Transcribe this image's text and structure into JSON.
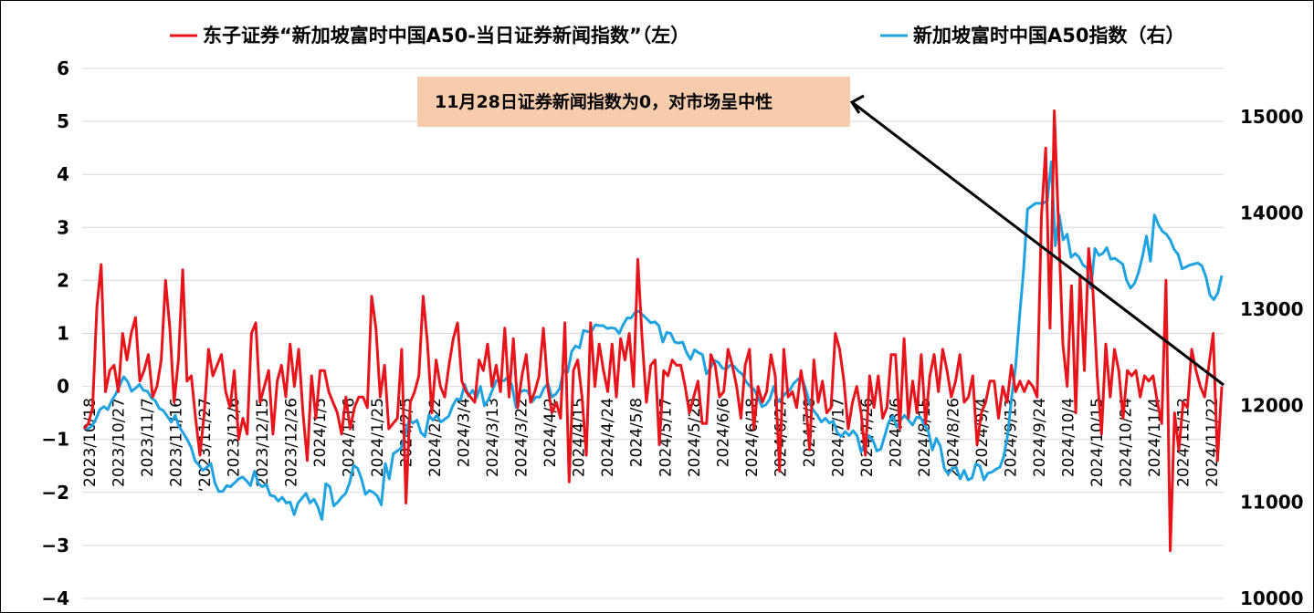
{
  "chart_data": {
    "type": "line",
    "legend_position": "top",
    "grid": true,
    "series": [
      {
        "name": "东子证券“新加坡富时中国A50-当日证券新闻指数”（左）",
        "color": "#e8141b",
        "axis": "left"
      },
      {
        "name": "新加坡富时中国A50指数（右）",
        "color": "#1fa3e0",
        "axis": "right"
      }
    ],
    "left_axis": {
      "min": -4,
      "max": 6,
      "ticks": [
        "6",
        "5",
        "4",
        "3",
        "2",
        "1",
        "0",
        "−1",
        "−2",
        "−3",
        "−4"
      ]
    },
    "right_axis": {
      "min": 10000,
      "max": 15500,
      "ticks": [
        "15000",
        "14000",
        "13000",
        "12000",
        "11000",
        "10000"
      ]
    },
    "x_ticks": [
      "2023/10/18",
      "2023/10/27",
      "2023/11/7",
      "2023/11/16",
      "‘2023/11/27",
      "2023/12/6",
      "2023/12/15",
      "2023/12/26",
      "2024/1/5",
      "2024/1/16",
      "2024/1/25",
      "2024/2/5",
      "2024/2/22",
      "2024/3/4",
      "2024/3/13",
      "2024/3/22",
      "2024/4/2",
      "2024/4/15",
      "2024/4/24",
      "2024/5/8",
      "2024/5/17",
      "2024/5/28",
      "2024/6/6",
      "2024/6/18",
      "2024/6/27",
      "2024/7/8",
      "2024/7/17",
      "2024/7/26",
      "2024/8/6",
      "2024/8/15",
      "2024/8/26",
      "2024/9/4",
      "2024/9/13",
      "2024/9/24",
      "2024/10/4",
      "2024/10/15",
      "2024/10/24",
      "2024/11/4",
      "2024/11/13",
      "2024/11/22"
    ],
    "news_index": [
      -0.8,
      -0.7,
      -0.4,
      1.5,
      2.3,
      -0.1,
      0.3,
      0.4,
      -0.1,
      1.0,
      0.5,
      1.0,
      1.3,
      0.1,
      0.3,
      0.6,
      -0.2,
      0.0,
      0.5,
      2.0,
      1.1,
      -0.3,
      0.5,
      2.2,
      0.1,
      0.2,
      -0.6,
      -1.3,
      -0.5,
      0.7,
      0.2,
      0.4,
      0.6,
      -0.1,
      -0.4,
      0.3,
      -1.0,
      -0.6,
      -0.9,
      1.0,
      1.2,
      -0.3,
      0.0,
      0.3,
      -0.9,
      0.1,
      0.4,
      -0.2,
      0.8,
      0.0,
      0.7,
      -0.5,
      -1.4,
      0.2,
      -0.6,
      0.3,
      0.3,
      -0.1,
      -0.3,
      -0.5,
      -0.9,
      -0.2,
      -0.8,
      -0.4,
      -0.2,
      -0.2,
      -0.4,
      1.7,
      1.1,
      -0.2,
      0.4,
      -0.8,
      -0.7,
      -0.6,
      0.7,
      -2.2,
      -0.3,
      -0.1,
      0.2,
      1.7,
      0.8,
      -0.5,
      0.5,
      0.0,
      -0.2,
      0.4,
      0.9,
      1.2,
      0.1,
      -0.1,
      -0.2,
      -0.3,
      0.5,
      0.3,
      0.8,
      0.0,
      0.4,
      -0.1,
      1.1,
      -0.2,
      0.9,
      -0.4,
      0.2,
      0.6,
      -0.3,
      -0.1,
      0.2,
      1.1,
      0.0,
      -0.5,
      -0.3,
      -0.6,
      1.2,
      -1.8,
      0.3,
      0.5,
      -0.2,
      -1.3,
      1.2,
      0.0,
      0.8,
      0.3,
      -0.1,
      0.8,
      -0.2,
      0.9,
      0.5,
      1.0,
      0.0,
      2.4,
      0.9,
      -0.3,
      0.4,
      0.5,
      -1.1,
      0.3,
      0.2,
      0.5,
      0.4,
      0.4,
      0.0,
      -0.5,
      -0.2,
      0.1,
      -0.7,
      -0.7,
      0.6,
      0.4,
      -0.2,
      -0.1,
      0.7,
      0.4,
      0.0,
      -0.6,
      0.4,
      0.7,
      -0.8,
      0.0,
      -0.3,
      -0.1,
      0.6,
      0.2,
      -1.6,
      0.7,
      -0.2,
      -0.1,
      -0.4,
      0.3,
      -0.2,
      -1.2,
      0.5,
      -0.3,
      0.1,
      -0.5,
      -0.4,
      1.0,
      0.7,
      0.1,
      -0.8,
      -0.3,
      0.0,
      -0.5,
      -1.3,
      0.2,
      -0.4,
      0.2,
      -0.6,
      -0.4,
      0.6,
      0.6,
      -0.8,
      0.9,
      -0.6,
      0.1,
      -0.5,
      0.6,
      -0.7,
      0.2,
      0.6,
      -0.1,
      0.7,
      0.3,
      -0.2,
      0.1,
      0.6,
      -0.3,
      -0.2,
      0.2,
      -1.1,
      -0.5,
      -0.3,
      0.1,
      0.1,
      -0.6,
      0.0,
      -0.3,
      0.4,
      -0.1,
      0.1,
      -0.1,
      0.1,
      0.0,
      -0.2,
      3.2,
      4.5,
      1.1,
      5.2,
      3.0,
      0.8,
      0.0,
      1.9,
      -0.5,
      2.1,
      0.3,
      2.6,
      1.8,
      0.2,
      -0.9,
      0.8,
      -0.2,
      0.7,
      0.3,
      -0.6,
      0.3,
      0.2,
      0.3,
      -0.2,
      0.2,
      0.1,
      0.2,
      -0.3,
      -0.7,
      2.0,
      -3.1,
      -0.5,
      -1.2,
      -0.3,
      -0.4,
      0.7,
      0.3,
      0.0,
      -0.2,
      0.4,
      1.0,
      -1.4,
      0.0
    ],
    "a50_index": [
      11770,
      11760,
      11790,
      11860,
      11960,
      11990,
      11960,
      12050,
      12120,
      12210,
      12300,
      12250,
      12150,
      12180,
      12220,
      12160,
      12150,
      12080,
      12050,
      11970,
      11950,
      11890,
      11830,
      11900,
      11780,
      11720,
      11650,
      11570,
      11430,
      11380,
      11330,
      11360,
      11400,
      11200,
      11110,
      11110,
      11170,
      11160,
      11200,
      11240,
      11260,
      11220,
      11170,
      11320,
      11190,
      11160,
      11180,
      11070,
      11060,
      11010,
      11050,
      10990,
      11000,
      10870,
      10990,
      11040,
      11090,
      10990,
      11030,
      10950,
      10820,
      11190,
      11160,
      10960,
      11000,
      11050,
      11090,
      11200,
      11380,
      11350,
      11240,
      11080,
      11120,
      11100,
      11060,
      10970,
      11400,
      11240,
      11500,
      11530,
      11560,
      11700,
      11850,
      11820,
      11850,
      11720,
      11680,
      11900,
      11850,
      11900,
      11830,
      11860,
      11890,
      12000,
      12070,
      12060,
      12220,
      12100,
      12160,
      12080,
      12200,
      12000,
      12060,
      12160,
      12260,
      12260,
      12260,
      12300,
      12200,
      11980,
      12140,
      12160,
      12150,
      12040,
      12090,
      12090,
      12180,
      12230,
      12090,
      12120,
      12180,
      12370,
      12350,
      12560,
      12620,
      12600,
      12780,
      12770,
      12770,
      12840,
      12830,
      12830,
      12800,
      12810,
      12800,
      12750,
      12840,
      12910,
      12910,
      12970,
      12980,
      12940,
      12900,
      12860,
      12870,
      12830,
      12660,
      12760,
      12750,
      12660,
      12650,
      12660,
      12550,
      12480,
      12580,
      12550,
      12530,
      12330,
      12390,
      12470,
      12450,
      12390,
      12380,
      12420,
      12410,
      12360,
      12330,
      12250,
      12200,
      12170,
      12090,
      11990,
      12010,
      12070,
      12200,
      12040,
      12080,
      12130,
      12160,
      12230,
      12270,
      12300,
      12180,
      12030,
      11950,
      11900,
      11830,
      11870,
      11820,
      11840,
      11720,
      11680,
      11730,
      11690,
      11740,
      11690,
      11520,
      11620,
      11690,
      11640,
      11530,
      11550,
      11690,
      11830,
      11890,
      11780,
      11850,
      11900,
      11850,
      11800,
      11880,
      11880,
      11800,
      11730,
      11540,
      11660,
      11580,
      11350,
      11290,
      11350,
      11360,
      11240,
      11330,
      11230,
      11250,
      11400,
      11370,
      11230,
      11300,
      11310,
      11340,
      11360,
      11470,
      11700,
      12090,
      12400,
      12930,
      13400,
      14040,
      14070,
      14100,
      14100,
      14100,
      14130,
      14530,
      13660,
      13980,
      13720,
      13780,
      13540,
      13580,
      13540,
      13460,
      13430,
      13220,
      13630,
      13560,
      13580,
      13640,
      13520,
      13530,
      13500,
      13470,
      13300,
      13220,
      13270,
      13380,
      13550,
      13760,
      13500,
      13980,
      13880,
      13810,
      13780,
      13720,
      13620,
      13570,
      13420,
      13440,
      13460,
      13470,
      13480,
      13450,
      13340,
      13150,
      13100,
      13170,
      13350
    ]
  },
  "annotation": {
    "text": "11月28日证券新闻指数为0，对市场呈中性"
  }
}
